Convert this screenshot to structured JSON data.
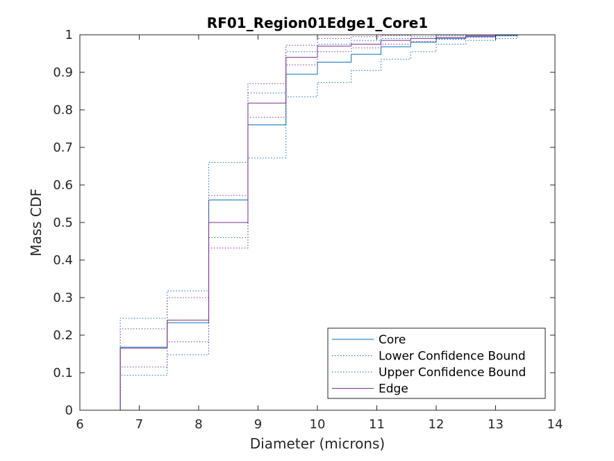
{
  "chart_data": {
    "type": "line",
    "step": true,
    "title": "RF01_Region01Edge1_Core1",
    "xlabel": "Diameter (microns)",
    "ylabel": "Mass CDF",
    "xlim": [
      6,
      14
    ],
    "ylim": [
      0,
      1
    ],
    "xticks": [
      "6",
      "7",
      "8",
      "9",
      "10",
      "11",
      "12",
      "13",
      "14"
    ],
    "yticks": [
      "0",
      "0.1",
      "0.2",
      "0.3",
      "0.4",
      "0.5",
      "0.6",
      "0.7",
      "0.8",
      "0.9",
      "1"
    ],
    "grid": false,
    "legend_position": "bottom-right",
    "series": [
      {
        "name": "Core",
        "color": "#0072BD",
        "style": "solid",
        "x": [
          6.68,
          6.68,
          7.47,
          8.17,
          8.83,
          9.47,
          10.0,
          10.57,
          11.07,
          11.57,
          12.0,
          12.5,
          13.0,
          13.37
        ],
        "y": [
          0.0,
          0.168,
          0.233,
          0.56,
          0.76,
          0.895,
          0.927,
          0.948,
          0.968,
          0.98,
          0.99,
          0.995,
          0.998,
          1.0
        ]
      },
      {
        "name": "Lower Confidence Bound",
        "color": "#0072BD",
        "style": "dotted",
        "x": [
          6.68,
          6.68,
          7.47,
          8.17,
          8.83,
          9.47,
          10.0,
          10.57,
          11.07,
          11.57,
          12.0,
          12.5,
          13.0,
          13.37
        ],
        "y": [
          0.0,
          0.093,
          0.148,
          0.46,
          0.672,
          0.835,
          0.873,
          0.905,
          0.935,
          0.955,
          0.975,
          0.985,
          0.99,
          0.995
        ]
      },
      {
        "name": "Upper Confidence Bound",
        "color": "#0072BD",
        "style": "dotted",
        "x": [
          6.68,
          6.68,
          7.47,
          8.17,
          8.83,
          9.47,
          10.0,
          10.57,
          11.07,
          11.57,
          12.0,
          12.5,
          13.0,
          13.37
        ],
        "y": [
          0.0,
          0.245,
          0.318,
          0.66,
          0.845,
          0.955,
          0.975,
          0.985,
          0.99,
          0.995,
          0.998,
          1.0,
          1.0,
          1.0
        ]
      },
      {
        "name": "Edge",
        "color": "#7E2F8E",
        "style": "solid",
        "x": [
          6.68,
          6.68,
          7.47,
          8.17,
          8.83,
          9.47,
          10.0,
          10.57,
          11.07,
          11.57,
          12.0,
          12.5,
          13.0,
          13.37
        ],
        "y": [
          0.0,
          0.165,
          0.24,
          0.5,
          0.818,
          0.94,
          0.97,
          0.975,
          0.985,
          0.99,
          0.993,
          0.997,
          1.0,
          1.0
        ]
      },
      {
        "name": "",
        "color": "#7E2F8E",
        "style": "dotted",
        "x": [
          6.68,
          6.68,
          7.47,
          8.17,
          8.83,
          9.47,
          10.0,
          10.57,
          11.07,
          11.57,
          12.0,
          12.5,
          13.0,
          13.37
        ],
        "y": [
          0.0,
          0.115,
          0.182,
          0.432,
          0.78,
          0.92,
          0.955,
          0.965,
          0.975,
          0.982,
          0.988,
          0.993,
          0.997,
          0.998
        ]
      },
      {
        "name": "",
        "color": "#7E2F8E",
        "style": "dotted",
        "x": [
          6.68,
          6.68,
          7.47,
          8.17,
          8.83,
          9.47,
          10.0,
          10.57,
          11.07,
          11.57,
          12.0,
          12.5,
          13.0,
          13.37
        ],
        "y": [
          0.0,
          0.217,
          0.3,
          0.572,
          0.87,
          0.972,
          0.99,
          0.995,
          0.998,
          1.0,
          1.0,
          1.0,
          1.0,
          1.0
        ]
      }
    ],
    "legend": [
      {
        "label": "Core",
        "color": "#0072BD",
        "style": "solid"
      },
      {
        "label": "Lower Confidence Bound",
        "color": "#0072BD",
        "style": "dotted"
      },
      {
        "label": "Upper Confidence Bound",
        "color": "#0072BD",
        "style": "dotted"
      },
      {
        "label": "Edge",
        "color": "#7E2F8E",
        "style": "solid"
      }
    ]
  }
}
